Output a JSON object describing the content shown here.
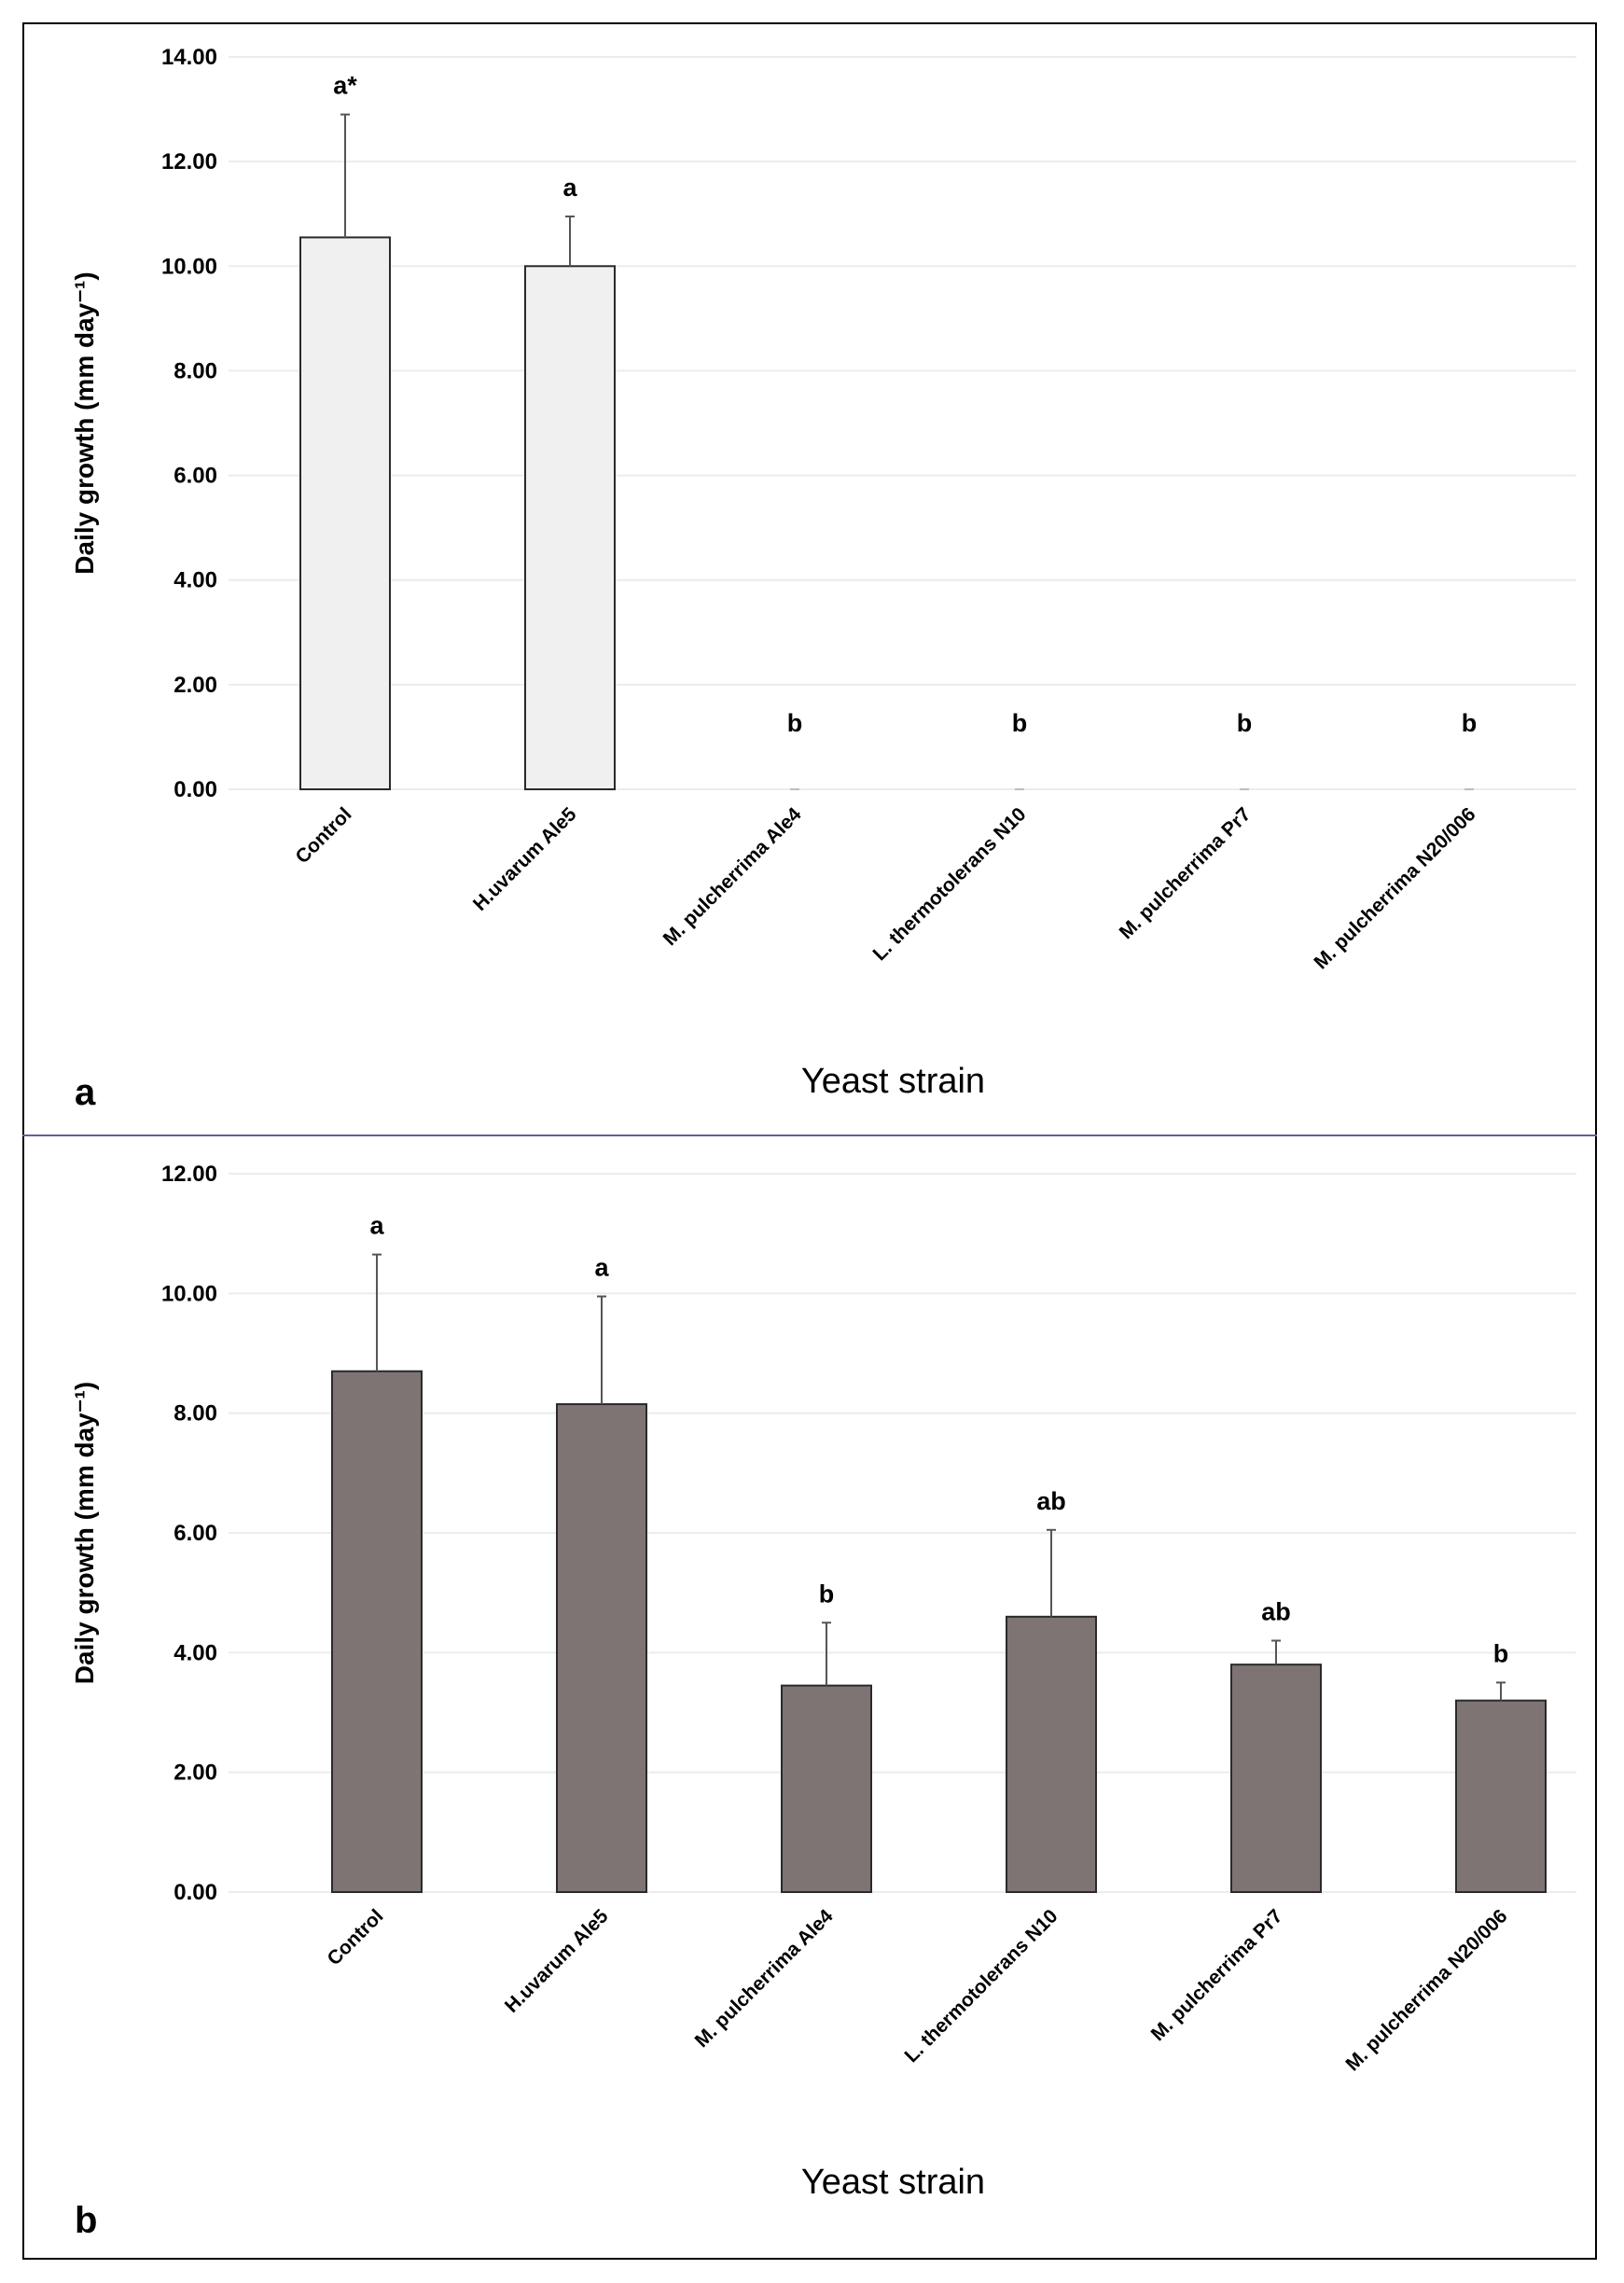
{
  "colors": {
    "panel_a_bar": "#f0f0f0",
    "panel_b_bar": "#7e7474",
    "bar_stroke": "#2a2a2a",
    "grid": "#ececec",
    "divider": "#6b5b95"
  },
  "chart_data": [
    {
      "type": "bar",
      "panel_label": "a",
      "title": "",
      "xlabel": "Yeast strain",
      "ylabel": "Daily growth (mm day⁻¹)",
      "ylim": [
        0,
        14
      ],
      "yticks": [
        0,
        2,
        4,
        6,
        8,
        10,
        12,
        14
      ],
      "ytick_labels": [
        "0.00",
        "2.00",
        "4.00",
        "6.00",
        "8.00",
        "10.00",
        "12.00",
        "14.00"
      ],
      "grid": true,
      "categories": [
        "Control",
        "H.uvarum Ale5",
        "M. pulcherrima Ale4",
        "L. thermotolerans N10",
        "M. pulcherrima Pr7",
        "M. pulcherrima N20/006"
      ],
      "values": [
        10.55,
        10.0,
        0.0,
        0.0,
        0.0,
        0.0
      ],
      "errors": [
        2.35,
        0.95,
        0.0,
        0.0,
        0.0,
        0.0
      ],
      "significance": [
        "a*",
        "a",
        "b",
        "b",
        "b",
        "b"
      ]
    },
    {
      "type": "bar",
      "panel_label": "b",
      "title": "",
      "xlabel": "Yeast strain",
      "ylabel": "Daily growth (mm day⁻¹)",
      "ylim": [
        0,
        12
      ],
      "yticks": [
        0,
        2,
        4,
        6,
        8,
        10,
        12
      ],
      "ytick_labels": [
        "0.00",
        "2.00",
        "4.00",
        "6.00",
        "8.00",
        "10.00",
        "12.00"
      ],
      "grid": true,
      "categories": [
        "Control",
        "H.uvarum Ale5",
        "M. pulcherrima Ale4",
        "L. thermotolerans N10",
        "M. pulcherrima Pr7",
        "M. pulcherrima N20/006"
      ],
      "values": [
        8.7,
        8.15,
        3.45,
        4.6,
        3.8,
        3.2
      ],
      "errors": [
        1.95,
        1.8,
        1.05,
        1.45,
        0.4,
        0.3
      ],
      "significance": [
        "a",
        "a",
        "b",
        "ab",
        "ab",
        "b"
      ]
    }
  ]
}
